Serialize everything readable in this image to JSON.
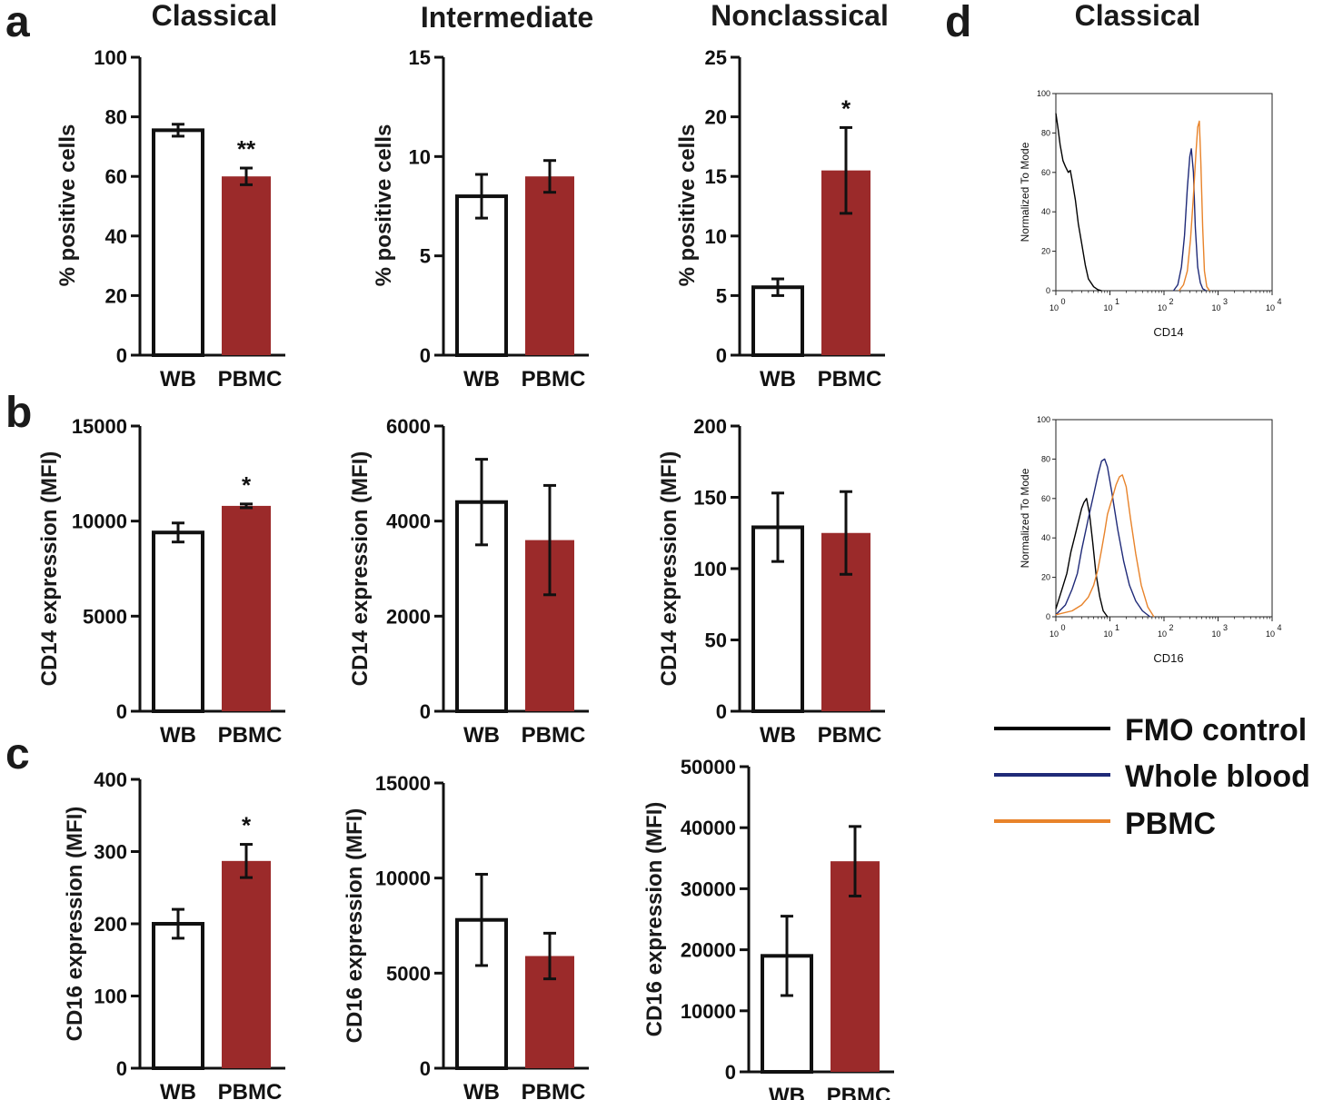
{
  "panel_letters": {
    "a": "a",
    "b": "b",
    "c": "c",
    "d": "d"
  },
  "column_titles": [
    "Classical",
    "Intermediate",
    "Nonclassical"
  ],
  "panel_d": {
    "title": "Classical",
    "histogram_ylabel": "Normalized To Mode",
    "y_ticks": [
      "0",
      "20",
      "40",
      "60",
      "80",
      "100"
    ],
    "x_ticks": [
      "10",
      "10",
      "10",
      "10",
      "10"
    ],
    "x_exponents": [
      "0",
      "1",
      "2",
      "3",
      "4"
    ],
    "plots": [
      {
        "xlabel": "CD14"
      },
      {
        "xlabel": "CD16"
      }
    ]
  },
  "legend": {
    "items": [
      {
        "label": "FMO control",
        "color": "#000000"
      },
      {
        "label": "Whole blood",
        "color": "#1f2a78"
      },
      {
        "label": "PBMC",
        "color": "#e8832a"
      }
    ]
  },
  "colors": {
    "wb_fill": "#ffffff",
    "pbmc_fill": "#9b2a2a",
    "axis": "#111111"
  },
  "chart_data": [
    {
      "id": "a1",
      "type": "bar",
      "row": "a",
      "title": "Classical",
      "ylabel": "% positive cells",
      "categories": [
        "WB",
        "PBMC"
      ],
      "values": [
        75.5,
        60
      ],
      "errors": [
        2,
        2.8
      ],
      "ylim": [
        0,
        100
      ],
      "yticks": [
        0,
        20,
        40,
        60,
        80,
        100
      ],
      "significance": [
        "",
        "**"
      ]
    },
    {
      "id": "a2",
      "type": "bar",
      "row": "a",
      "title": "Intermediate",
      "ylabel": "% positive cells",
      "categories": [
        "WB",
        "PBMC"
      ],
      "values": [
        8,
        9
      ],
      "errors": [
        1.1,
        0.8
      ],
      "ylim": [
        0,
        15
      ],
      "yticks": [
        0,
        5,
        10,
        15
      ],
      "significance": [
        "",
        ""
      ]
    },
    {
      "id": "a3",
      "type": "bar",
      "row": "a",
      "title": "Nonclassical",
      "ylabel": "% positive cells",
      "categories": [
        "WB",
        "PBMC"
      ],
      "values": [
        5.7,
        15.5
      ],
      "errors": [
        0.7,
        3.6
      ],
      "ylim": [
        0,
        25
      ],
      "yticks": [
        0,
        5,
        10,
        15,
        20,
        25
      ],
      "significance": [
        "",
        "*"
      ]
    },
    {
      "id": "b1",
      "type": "bar",
      "row": "b",
      "ylabel": "CD14 expression (MFI)",
      "categories": [
        "WB",
        "PBMC"
      ],
      "values": [
        9400,
        10800
      ],
      "errors": [
        500,
        100
      ],
      "ylim": [
        0,
        15000
      ],
      "yticks": [
        0,
        5000,
        10000,
        15000
      ],
      "significance": [
        "",
        "*"
      ]
    },
    {
      "id": "b2",
      "type": "bar",
      "row": "b",
      "ylabel": "CD14 expression (MFI)",
      "categories": [
        "WB",
        "PBMC"
      ],
      "values": [
        4400,
        3600
      ],
      "errors": [
        900,
        1150
      ],
      "ylim": [
        0,
        6000
      ],
      "yticks": [
        0,
        2000,
        4000,
        6000
      ],
      "significance": [
        "",
        ""
      ]
    },
    {
      "id": "b3",
      "type": "bar",
      "row": "b",
      "ylabel": "CD14 expression (MFI)",
      "categories": [
        "WB",
        "PBMC"
      ],
      "values": [
        129,
        125
      ],
      "errors": [
        24,
        29
      ],
      "ylim": [
        0,
        200
      ],
      "yticks": [
        0,
        50,
        100,
        150,
        200
      ],
      "significance": [
        "",
        ""
      ]
    },
    {
      "id": "c1",
      "type": "bar",
      "row": "c",
      "ylabel": "CD16 expression (MFI)",
      "categories": [
        "WB",
        "PBMC"
      ],
      "values": [
        200,
        287
      ],
      "errors": [
        20,
        23
      ],
      "ylim": [
        0,
        400
      ],
      "yticks": [
        0,
        100,
        200,
        300,
        400
      ],
      "significance": [
        "",
        "*"
      ]
    },
    {
      "id": "c2",
      "type": "bar",
      "row": "c",
      "ylabel": "CD16 expression (MFI)",
      "categories": [
        "WB",
        "PBMC"
      ],
      "values": [
        7800,
        5900
      ],
      "errors": [
        2400,
        1200
      ],
      "ylim": [
        0,
        15000
      ],
      "yticks": [
        0,
        5000,
        10000,
        15000
      ],
      "significance": [
        "",
        ""
      ]
    },
    {
      "id": "c3",
      "type": "bar",
      "row": "c",
      "ylabel": "CD16 expression (MFI)",
      "categories": [
        "WB",
        "PBMC"
      ],
      "values": [
        19000,
        34500
      ],
      "errors": [
        6500,
        5700
      ],
      "ylim": [
        0,
        50000
      ],
      "yticks": [
        0,
        10000,
        20000,
        30000,
        40000,
        50000
      ],
      "significance": [
        "",
        ""
      ]
    },
    {
      "id": "d1",
      "type": "line",
      "panel": "d",
      "title": "Classical",
      "xlabel": "CD14",
      "ylabel": "Normalized To Mode",
      "xscale": "log",
      "xlim": [
        1,
        10000
      ],
      "ylim": [
        0,
        100
      ],
      "series": [
        {
          "name": "FMO control",
          "x": [
            1,
            1.1,
            1.2,
            1.35,
            1.5,
            1.7,
            1.85,
            2,
            2.3,
            2.6,
            3,
            3.5,
            4,
            5,
            6,
            7
          ],
          "y": [
            90,
            82,
            74,
            66,
            63,
            60,
            61,
            56,
            46,
            34,
            24,
            13,
            6,
            2,
            0.5,
            0
          ]
        },
        {
          "name": "Whole blood",
          "x": [
            150,
            180,
            210,
            240,
            270,
            300,
            320,
            350,
            380,
            420,
            470,
            520,
            600
          ],
          "y": [
            0,
            3,
            12,
            28,
            52,
            68,
            72,
            60,
            32,
            12,
            4,
            1,
            0
          ]
        },
        {
          "name": "PBMC",
          "x": [
            190,
            230,
            270,
            310,
            350,
            390,
            420,
            450,
            480,
            520,
            560,
            620,
            700
          ],
          "y": [
            0,
            3,
            10,
            26,
            48,
            70,
            83,
            86,
            66,
            32,
            10,
            2,
            0
          ]
        }
      ]
    },
    {
      "id": "d2",
      "type": "line",
      "panel": "d",
      "title": "Classical",
      "xlabel": "CD16",
      "ylabel": "Normalized To Mode",
      "xscale": "log",
      "xlim": [
        1,
        10000
      ],
      "ylim": [
        0,
        100
      ],
      "series": [
        {
          "name": "FMO control",
          "x": [
            1,
            1.3,
            1.6,
            1.9,
            2.3,
            2.6,
            3,
            3.3,
            3.7,
            4.2,
            4.8,
            5.5,
            6.5,
            7.5,
            9
          ],
          "y": [
            4,
            14,
            22,
            33,
            42,
            48,
            55,
            58,
            60,
            52,
            38,
            22,
            10,
            3,
            0
          ]
        },
        {
          "name": "Whole blood",
          "x": [
            1,
            1.5,
            2,
            2.5,
            3,
            4,
            5,
            6,
            7,
            8,
            9,
            11,
            14,
            18,
            23,
            30,
            40,
            55
          ],
          "y": [
            1,
            6,
            14,
            22,
            34,
            50,
            62,
            72,
            79,
            80,
            76,
            62,
            44,
            28,
            16,
            8,
            3,
            0
          ]
        },
        {
          "name": "PBMC",
          "x": [
            1,
            2,
            3,
            4,
            5,
            6,
            7,
            8,
            9,
            11,
            13,
            15,
            17,
            20,
            24,
            30,
            38,
            50,
            65
          ],
          "y": [
            1,
            3,
            6,
            10,
            16,
            24,
            34,
            43,
            52,
            60,
            67,
            71,
            72,
            66,
            50,
            32,
            16,
            5,
            0
          ]
        }
      ]
    }
  ]
}
